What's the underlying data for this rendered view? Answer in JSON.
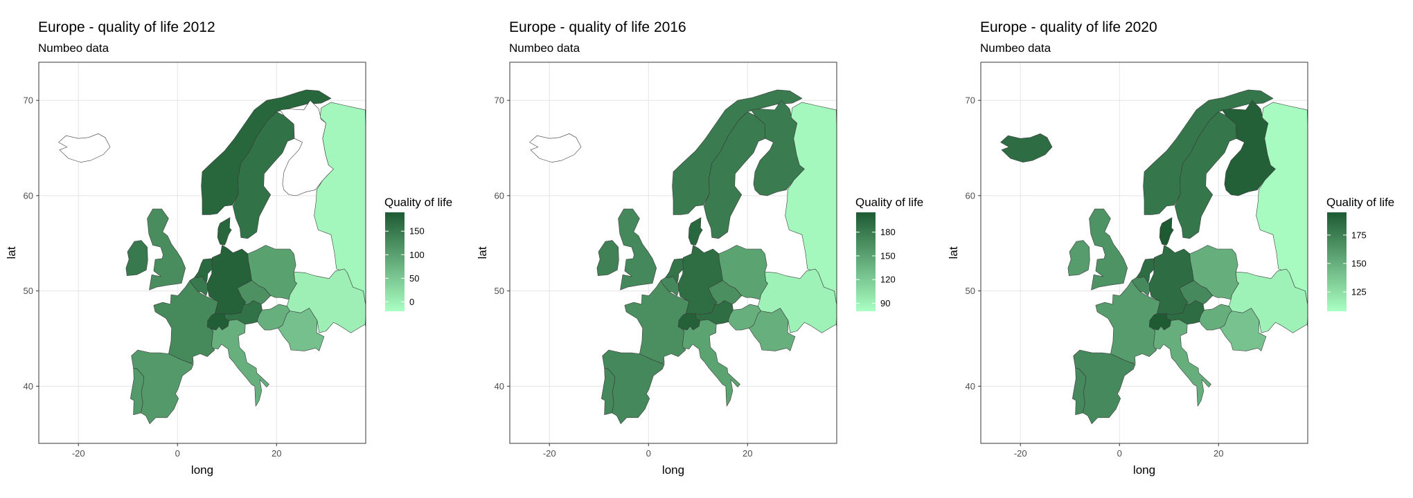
{
  "chart_data": [
    {
      "type": "choropleth",
      "title": "Europe - quality of life 2012",
      "subtitle": "Numbeo data",
      "xlabel": "long",
      "ylabel": "lat",
      "x_ticks": [
        "-20",
        "0",
        "20"
      ],
      "y_ticks": [
        "40",
        "50",
        "60",
        "70"
      ],
      "xlim": [
        -28,
        38
      ],
      "ylim": [
        34,
        74
      ],
      "legend": {
        "title": "Quality of life",
        "min": -20,
        "max": 190,
        "breaks": [
          0,
          50,
          100,
          150
        ],
        "labels": [
          "0",
          "50",
          "100",
          "150"
        ],
        "low_color": "#aaffc3",
        "high_color": "#1e5a32",
        "placement": "right"
      },
      "regions": [
        {
          "name": "Norway",
          "value": 175
        },
        {
          "name": "Sweden",
          "value": 160
        },
        {
          "name": "Finland",
          "value": null
        },
        {
          "name": "Russia",
          "value": -10
        },
        {
          "name": "Iceland",
          "value": null
        },
        {
          "name": "Ireland",
          "value": 150
        },
        {
          "name": "United Kingdom",
          "value": 125
        },
        {
          "name": "France",
          "value": 130
        },
        {
          "name": "Spain",
          "value": 110
        },
        {
          "name": "Portugal",
          "value": 110
        },
        {
          "name": "Germany",
          "value": 180
        },
        {
          "name": "Netherlands",
          "value": 170
        },
        {
          "name": "Belgium",
          "value": 150
        },
        {
          "name": "Switzerland",
          "value": 185
        },
        {
          "name": "Italy",
          "value": 80
        },
        {
          "name": "Poland",
          "value": 100
        },
        {
          "name": "Austria",
          "value": 160
        },
        {
          "name": "Czech Republic",
          "value": 120
        },
        {
          "name": "Denmark",
          "value": 175
        },
        {
          "name": "Romania",
          "value": 60
        },
        {
          "name": "Hungary",
          "value": 80
        },
        {
          "name": "Ukraine",
          "value": 0
        }
      ]
    },
    {
      "type": "choropleth",
      "title": "Europe - quality of life 2016",
      "subtitle": "Numbeo data",
      "xlabel": "long",
      "ylabel": "lat",
      "x_ticks": [
        "-20",
        "0",
        "20"
      ],
      "y_ticks": [
        "40",
        "50",
        "60",
        "70"
      ],
      "xlim": [
        -28,
        38
      ],
      "ylim": [
        34,
        74
      ],
      "legend": {
        "title": "Quality of life",
        "min": 80,
        "max": 205,
        "breaks": [
          90,
          120,
          150,
          180
        ],
        "labels": [
          "90",
          "120",
          "150",
          "180"
        ],
        "low_color": "#aaffc3",
        "high_color": "#1e5a32",
        "placement": "right"
      },
      "regions": [
        {
          "name": "Norway",
          "value": 180
        },
        {
          "name": "Sweden",
          "value": 180
        },
        {
          "name": "Finland",
          "value": 180
        },
        {
          "name": "Russia",
          "value": 85
        },
        {
          "name": "Iceland",
          "value": null
        },
        {
          "name": "Ireland",
          "value": 175
        },
        {
          "name": "United Kingdom",
          "value": 170
        },
        {
          "name": "France",
          "value": 165
        },
        {
          "name": "Spain",
          "value": 170
        },
        {
          "name": "Portugal",
          "value": 170
        },
        {
          "name": "Germany",
          "value": 190
        },
        {
          "name": "Netherlands",
          "value": 185
        },
        {
          "name": "Belgium",
          "value": 170
        },
        {
          "name": "Switzerland",
          "value": 200
        },
        {
          "name": "Italy",
          "value": 150
        },
        {
          "name": "Poland",
          "value": 150
        },
        {
          "name": "Austria",
          "value": 190
        },
        {
          "name": "Czech Republic",
          "value": 165
        },
        {
          "name": "Denmark",
          "value": 195
        },
        {
          "name": "Romania",
          "value": 140
        },
        {
          "name": "Hungary",
          "value": 140
        },
        {
          "name": "Ukraine",
          "value": 90
        }
      ]
    },
    {
      "type": "choropleth",
      "title": "Europe - quality of life 2020",
      "subtitle": "Numbeo data",
      "xlabel": "long",
      "ylabel": "lat",
      "x_ticks": [
        "-20",
        "0",
        "20"
      ],
      "y_ticks": [
        "40",
        "50",
        "60",
        "70"
      ],
      "xlim": [
        -28,
        38
      ],
      "ylim": [
        34,
        74
      ],
      "legend": {
        "title": "Quality of life",
        "min": 108,
        "max": 195,
        "breaks": [
          125,
          150,
          175
        ],
        "labels": [
          "125",
          "150",
          "175"
        ],
        "low_color": "#aaffc3",
        "high_color": "#1e5a32",
        "placement": "right"
      },
      "regions": [
        {
          "name": "Norway",
          "value": 180
        },
        {
          "name": "Sweden",
          "value": 180
        },
        {
          "name": "Finland",
          "value": 192
        },
        {
          "name": "Russia",
          "value": 110
        },
        {
          "name": "Iceland",
          "value": 185
        },
        {
          "name": "Ireland",
          "value": 160
        },
        {
          "name": "United Kingdom",
          "value": 165
        },
        {
          "name": "France",
          "value": 160
        },
        {
          "name": "Spain",
          "value": 170
        },
        {
          "name": "Portugal",
          "value": 170
        },
        {
          "name": "Germany",
          "value": 185
        },
        {
          "name": "Netherlands",
          "value": 185
        },
        {
          "name": "Belgium",
          "value": 170
        },
        {
          "name": "Switzerland",
          "value": 195
        },
        {
          "name": "Italy",
          "value": 150
        },
        {
          "name": "Poland",
          "value": 150
        },
        {
          "name": "Austria",
          "value": 185
        },
        {
          "name": "Czech Republic",
          "value": 170
        },
        {
          "name": "Denmark",
          "value": 195
        },
        {
          "name": "Romania",
          "value": 140
        },
        {
          "name": "Hungary",
          "value": 150
        },
        {
          "name": "Ukraine",
          "value": 115
        }
      ]
    }
  ]
}
